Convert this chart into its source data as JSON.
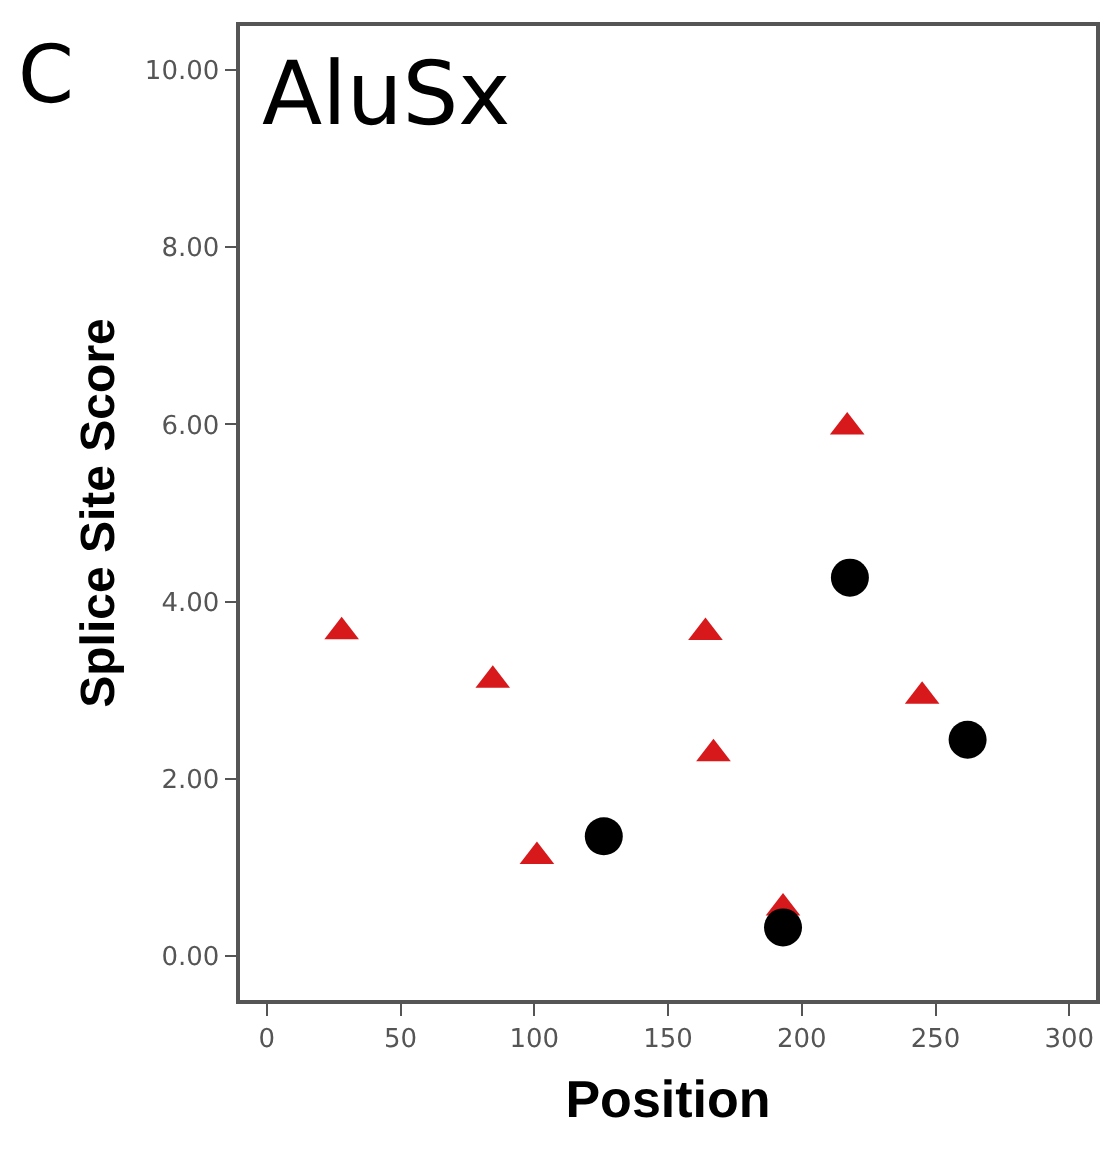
{
  "chart_data": {
    "type": "scatter",
    "xlabel": "Position",
    "ylabel": "Splice Site Score",
    "annotations": [
      "C",
      "AluSx"
    ],
    "series": [
      {
        "color": "#d7191c",
        "marker": "triangle",
        "x": [
          28,
          84.5,
          101,
          164,
          167,
          217,
          245,
          193
        ],
        "values": [
          3.66,
          3.11,
          1.12,
          3.65,
          2.28,
          5.97,
          2.93,
          0.54
        ]
      },
      {
        "color": "#000000",
        "marker": "circle",
        "x": [
          126,
          218,
          262,
          193
        ],
        "values": [
          1.35,
          4.27,
          2.44,
          0.32
        ]
      }
    ],
    "xlim": [
      -10,
      310
    ],
    "xticks": [
      0,
      50,
      100,
      150,
      200,
      250,
      300
    ],
    "ylim": [
      -0.5,
      10.5
    ],
    "yticks": [
      {
        "value": 0,
        "label": "0.00"
      },
      {
        "value": 2,
        "label": "2.00"
      },
      {
        "value": 4,
        "label": "4.00"
      },
      {
        "value": 6,
        "label": "6.00"
      },
      {
        "value": 8,
        "label": "8.00"
      },
      {
        "value": 10,
        "label": "10.00"
      }
    ],
    "grid": false
  }
}
